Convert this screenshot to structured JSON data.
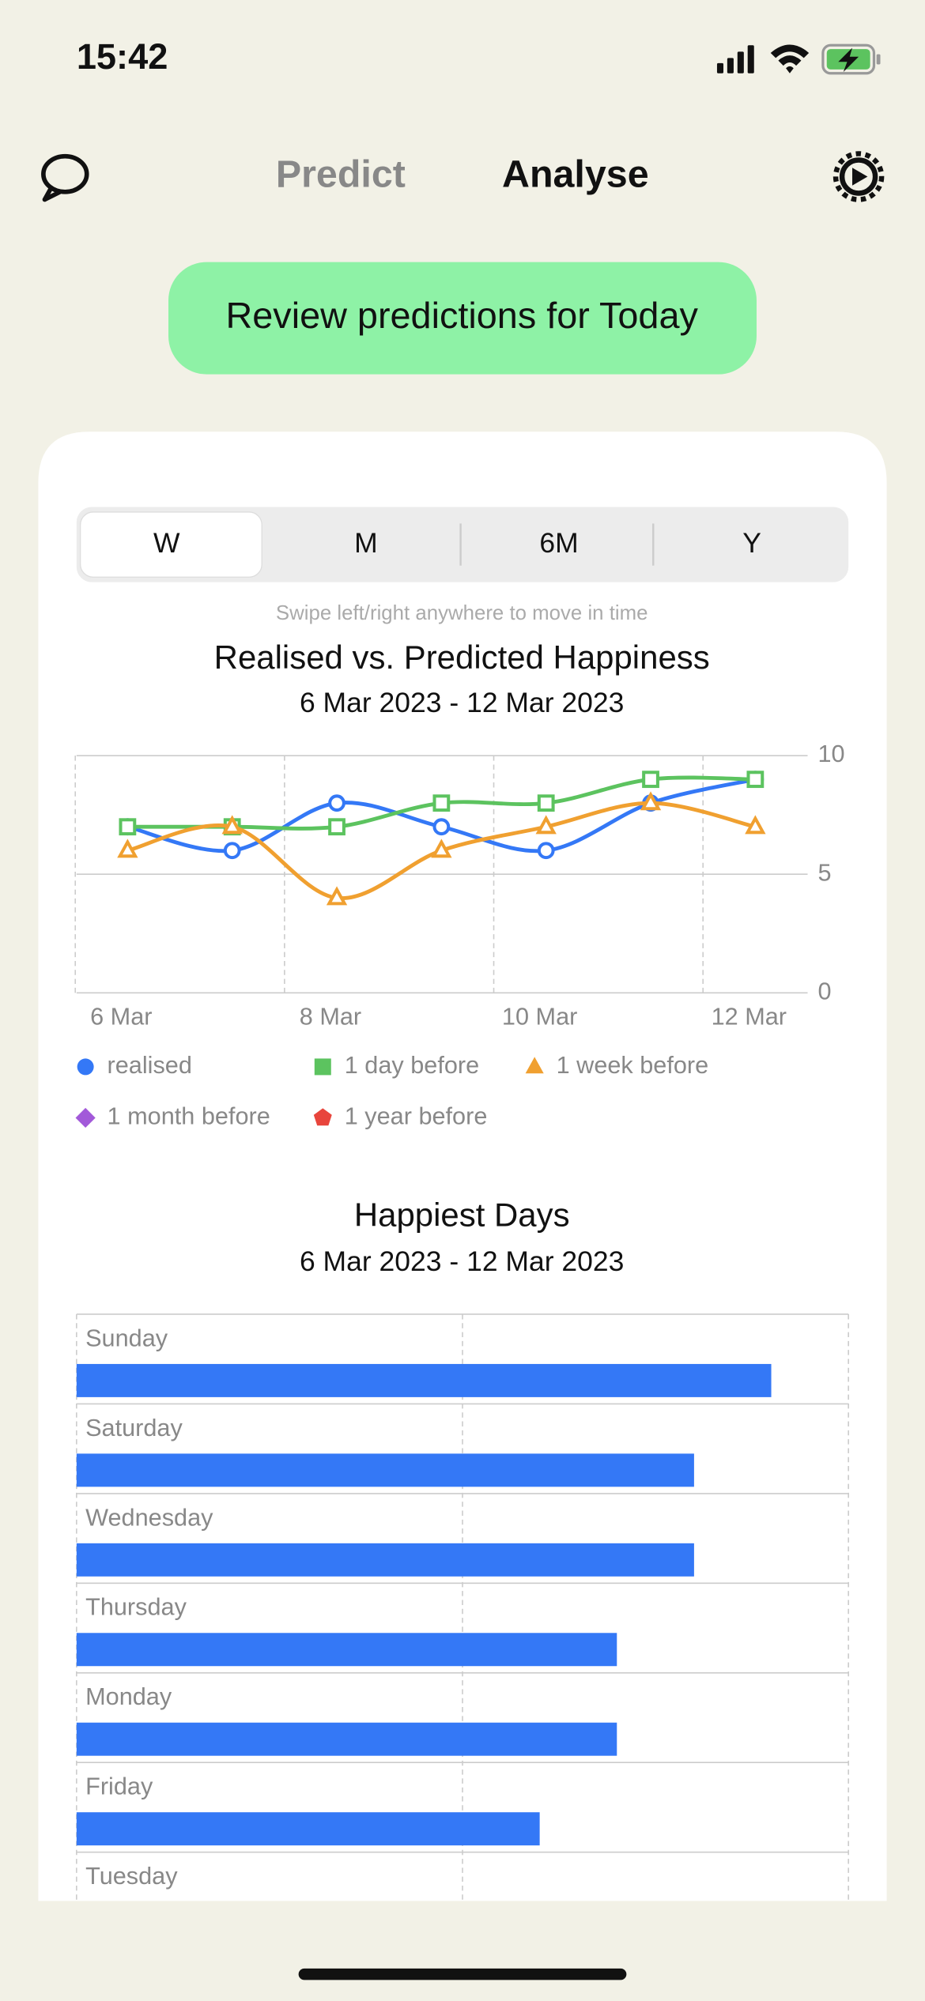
{
  "status_bar": {
    "time": "15:42"
  },
  "nav": {
    "tabs": [
      "Predict",
      "Analyse"
    ],
    "active": 1
  },
  "button": {
    "label": "Review predictions for Today"
  },
  "range_selector": {
    "options": [
      "W",
      "M",
      "6M",
      "Y"
    ],
    "selected": 0
  },
  "hint": "Swipe left/right anywhere to move in time",
  "chart_data": [
    {
      "type": "line",
      "title": "Realised vs. Predicted Happiness",
      "subtitle": "6 Mar 2023 - 12 Mar 2023",
      "categories": [
        "6 Mar",
        null,
        "8 Mar",
        null,
        "10 Mar",
        null,
        "12 Mar"
      ],
      "series": [
        {
          "name": "realised",
          "color": "#3478f6",
          "marker": "circle",
          "values": [
            7,
            6,
            8,
            7,
            6,
            8,
            9
          ]
        },
        {
          "name": "1 day before",
          "color": "#5cc35f",
          "marker": "square",
          "values": [
            7,
            7,
            7,
            8,
            8,
            9,
            9
          ]
        },
        {
          "name": "1 week before",
          "color": "#f0a030",
          "marker": "triangle",
          "values": [
            6,
            7,
            4,
            6,
            7,
            8,
            7
          ]
        },
        {
          "name": "1 month before",
          "color": "#a259d9",
          "marker": "diamond",
          "values": [
            null,
            null,
            null,
            null,
            null,
            null,
            null
          ]
        },
        {
          "name": "1 year before",
          "color": "#e8453c",
          "marker": "pentagon",
          "values": [
            null,
            null,
            null,
            null,
            null,
            null,
            null
          ]
        }
      ],
      "ylim": [
        0,
        10
      ],
      "yticks": [
        0,
        5,
        10
      ],
      "grid": true,
      "y_axis_side": "right"
    },
    {
      "type": "bar",
      "orientation": "horizontal",
      "title": "Happiest Days",
      "subtitle": "6 Mar 2023 - 12 Mar 2023",
      "categories": [
        "Sunday",
        "Saturday",
        "Wednesday",
        "Thursday",
        "Monday",
        "Friday",
        "Tuesday"
      ],
      "values": [
        9,
        8,
        8,
        7,
        7,
        6,
        null
      ],
      "color": "#3478f6",
      "xlim": [
        0,
        10
      ],
      "xticks": [
        0,
        5,
        10
      ],
      "grid": true
    }
  ]
}
